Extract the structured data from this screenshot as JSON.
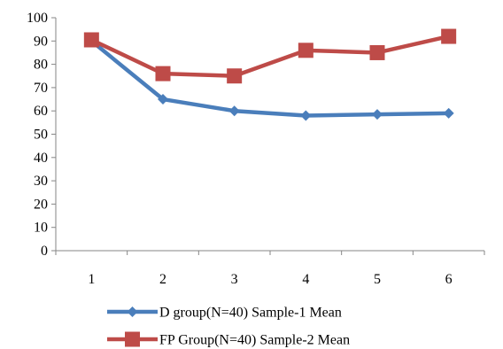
{
  "chart_data": {
    "type": "line",
    "categories": [
      "1",
      "2",
      "3",
      "4",
      "5",
      "6"
    ],
    "y_ticks": [
      "0",
      "10",
      "20",
      "30",
      "40",
      "50",
      "60",
      "70",
      "80",
      "90",
      "100"
    ],
    "ylim": [
      0,
      100
    ],
    "grid": false,
    "legend_position": "bottom",
    "series": [
      {
        "name": "D group(N=40) Sample-1 Mean",
        "values": [
          90,
          65,
          60,
          58,
          58.5,
          59
        ],
        "color": "#4A7EBB",
        "marker": "diamond"
      },
      {
        "name": "FP Group(N=40) Sample-2 Mean",
        "values": [
          90.5,
          76,
          75,
          86,
          85,
          92
        ],
        "color": "#BE4B48",
        "marker": "square"
      }
    ]
  }
}
